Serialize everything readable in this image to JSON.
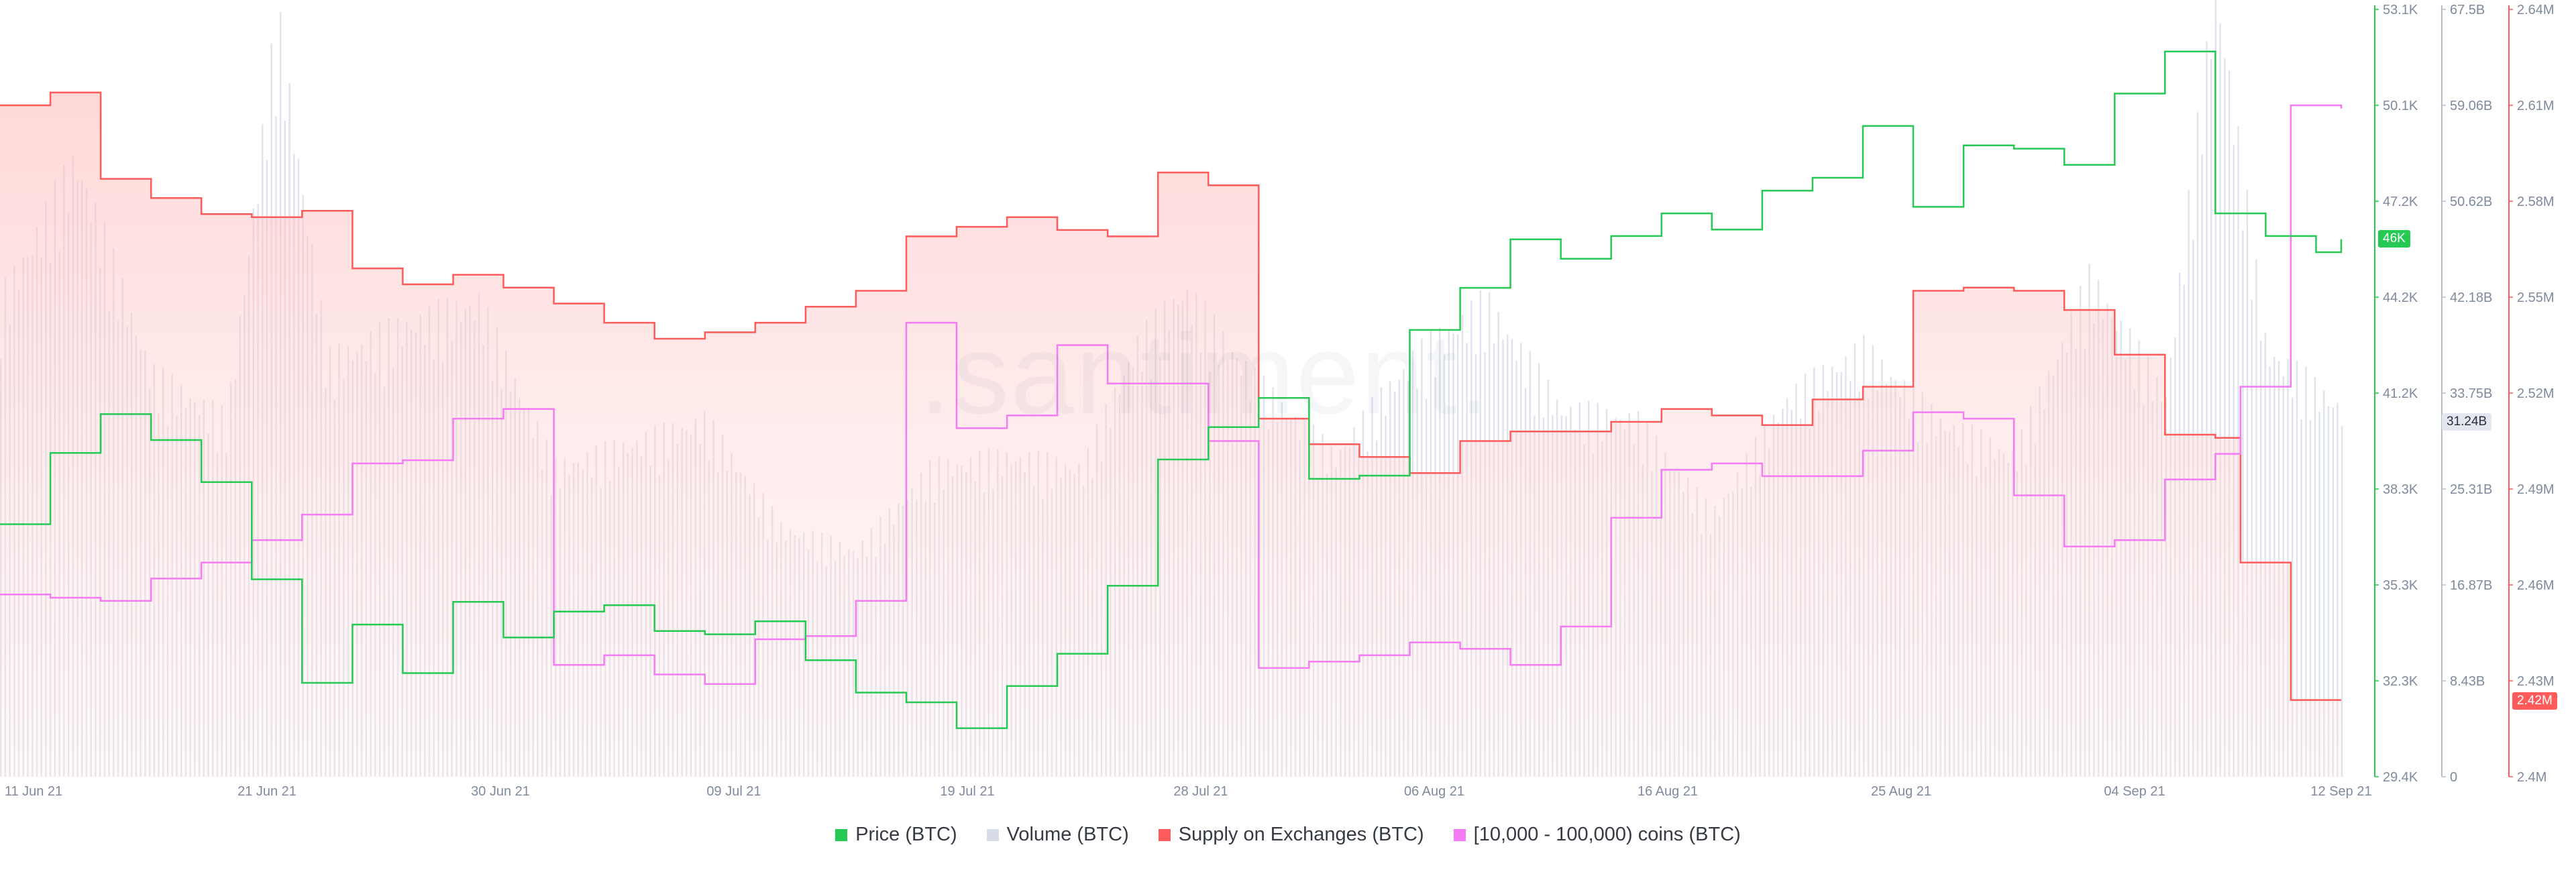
{
  "watermark": ".santiment.",
  "legend": [
    {
      "label": "Price (BTC)",
      "color": "#26c953"
    },
    {
      "label": "Volume (BTC)",
      "color": "#d8dbe8"
    },
    {
      "label": "Supply on Exchanges (BTC)",
      "color": "#ff5b5b"
    },
    {
      "label": "[10,000 - 100,000) coins (BTC)",
      "color": "#f47bf4"
    }
  ],
  "badges": {
    "price_current": "46K",
    "volume_current": "31.24B",
    "supply_current": "2.42M"
  },
  "chart_data": {
    "type": "line",
    "title": "",
    "x_labels": [
      "11 Jun 21",
      "21 Jun 21",
      "30 Jun 21",
      "09 Jul 21",
      "19 Jul 21",
      "28 Jul 21",
      "06 Aug 21",
      "16 Aug 21",
      "25 Aug 21",
      "04 Sep 21",
      "12 Sep 21"
    ],
    "date_range": [
      "2021-06-11",
      "2021-09-12"
    ],
    "grid": false,
    "axes": {
      "price": {
        "ticks": [
          "29.4K",
          "32.3K",
          "35.3K",
          "38.3K",
          "41.2K",
          "44.2K",
          "47.2K",
          "50.1K",
          "53.1K"
        ],
        "range": [
          29400,
          53100
        ],
        "color": "#26c953"
      },
      "volume": {
        "ticks": [
          "0",
          "8.43B",
          "16.87B",
          "25.31B",
          "33.75B",
          "42.18B",
          "50.62B",
          "59.06B",
          "67.5B"
        ],
        "range": [
          0,
          67.5
        ],
        "unit": "B",
        "color": "#b9bdcc"
      },
      "supply": {
        "ticks": [
          "2.4M",
          "2.43M",
          "2.46M",
          "2.49M",
          "2.52M",
          "2.55M",
          "2.58M",
          "2.61M",
          "2.64M"
        ],
        "range": [
          2.4,
          2.64
        ],
        "unit": "M",
        "color": "#ff5b5b"
      }
    },
    "series": [
      {
        "name": "Price (BTC)",
        "axis": "price",
        "color": "#26c953",
        "x": [
          "2021-06-11",
          "2021-06-13",
          "2021-06-15",
          "2021-06-17",
          "2021-06-19",
          "2021-06-21",
          "2021-06-23",
          "2021-06-25",
          "2021-06-27",
          "2021-06-29",
          "2021-07-01",
          "2021-07-03",
          "2021-07-05",
          "2021-07-07",
          "2021-07-09",
          "2021-07-11",
          "2021-07-13",
          "2021-07-15",
          "2021-07-17",
          "2021-07-19",
          "2021-07-21",
          "2021-07-23",
          "2021-07-25",
          "2021-07-27",
          "2021-07-29",
          "2021-07-31",
          "2021-08-02",
          "2021-08-04",
          "2021-08-06",
          "2021-08-08",
          "2021-08-10",
          "2021-08-12",
          "2021-08-14",
          "2021-08-16",
          "2021-08-18",
          "2021-08-20",
          "2021-08-22",
          "2021-08-24",
          "2021-08-26",
          "2021-08-28",
          "2021-08-30",
          "2021-09-01",
          "2021-09-03",
          "2021-09-05",
          "2021-09-07",
          "2021-09-09",
          "2021-09-11",
          "2021-09-12"
        ],
        "y": [
          37200,
          39400,
          40600,
          39800,
          38500,
          35500,
          32300,
          34100,
          32600,
          34800,
          33700,
          34500,
          34700,
          33900,
          33800,
          34200,
          33000,
          32000,
          31700,
          30900,
          32200,
          33200,
          35300,
          39200,
          40200,
          41100,
          38600,
          38700,
          43200,
          44500,
          46000,
          45400,
          46100,
          46800,
          46300,
          47500,
          47900,
          49500,
          47000,
          48900,
          48800,
          48300,
          50500,
          51800,
          46800,
          46100,
          45600,
          46000
        ]
      },
      {
        "name": "Volume (BTC)",
        "axis": "volume",
        "color": "#d8dbe8",
        "unit": "B",
        "x": [
          "2021-06-11",
          "2021-06-14",
          "2021-06-17",
          "2021-06-20",
          "2021-06-22",
          "2021-06-24",
          "2021-06-27",
          "2021-06-30",
          "2021-07-03",
          "2021-07-06",
          "2021-07-09",
          "2021-07-12",
          "2021-07-15",
          "2021-07-18",
          "2021-07-21",
          "2021-07-24",
          "2021-07-26",
          "2021-07-28",
          "2021-07-31",
          "2021-08-03",
          "2021-08-06",
          "2021-08-09",
          "2021-08-12",
          "2021-08-15",
          "2021-08-18",
          "2021-08-21",
          "2021-08-24",
          "2021-08-27",
          "2021-08-30",
          "2021-09-02",
          "2021-09-05",
          "2021-09-07",
          "2021-09-09",
          "2021-09-12"
        ],
        "y": [
          40,
          52,
          34,
          30,
          64,
          35,
          38,
          40,
          26,
          28,
          30,
          21,
          19,
          26,
          27,
          26,
          36,
          41,
          33,
          27,
          35,
          40,
          31,
          30,
          22,
          32,
          36,
          30,
          27,
          42,
          32,
          67,
          36,
          31
        ]
      },
      {
        "name": "Supply on Exchanges (BTC)",
        "axis": "supply",
        "color": "#ff5b5b",
        "unit": "M",
        "x": [
          "2021-06-11",
          "2021-06-13",
          "2021-06-15",
          "2021-06-17",
          "2021-06-19",
          "2021-06-21",
          "2021-06-23",
          "2021-06-25",
          "2021-06-27",
          "2021-06-29",
          "2021-07-01",
          "2021-07-03",
          "2021-07-05",
          "2021-07-07",
          "2021-07-09",
          "2021-07-11",
          "2021-07-13",
          "2021-07-15",
          "2021-07-17",
          "2021-07-19",
          "2021-07-21",
          "2021-07-23",
          "2021-07-25",
          "2021-07-27",
          "2021-07-29",
          "2021-07-31",
          "2021-08-02",
          "2021-08-04",
          "2021-08-06",
          "2021-08-08",
          "2021-08-10",
          "2021-08-12",
          "2021-08-14",
          "2021-08-16",
          "2021-08-18",
          "2021-08-20",
          "2021-08-22",
          "2021-08-24",
          "2021-08-26",
          "2021-08-28",
          "2021-08-30",
          "2021-09-01",
          "2021-09-03",
          "2021-09-05",
          "2021-09-07",
          "2021-09-08",
          "2021-09-10",
          "2021-09-12"
        ],
        "y": [
          2.61,
          2.614,
          2.587,
          2.581,
          2.576,
          2.575,
          2.577,
          2.559,
          2.554,
          2.557,
          2.553,
          2.548,
          2.542,
          2.537,
          2.539,
          2.542,
          2.547,
          2.552,
          2.569,
          2.572,
          2.575,
          2.571,
          2.569,
          2.589,
          2.585,
          2.512,
          2.504,
          2.5,
          2.495,
          2.505,
          2.508,
          2.508,
          2.511,
          2.515,
          2.513,
          2.51,
          2.518,
          2.522,
          2.552,
          2.553,
          2.552,
          2.546,
          2.532,
          2.507,
          2.506,
          2.467,
          2.424,
          2.424
        ]
      },
      {
        "name": "[10,000 - 100,000) coins (BTC)",
        "axis": "supply",
        "color": "#f47bf4",
        "unit": "M",
        "x": [
          "2021-06-11",
          "2021-06-13",
          "2021-06-15",
          "2021-06-17",
          "2021-06-19",
          "2021-06-21",
          "2021-06-23",
          "2021-06-25",
          "2021-06-27",
          "2021-06-29",
          "2021-07-01",
          "2021-07-03",
          "2021-07-05",
          "2021-07-07",
          "2021-07-09",
          "2021-07-11",
          "2021-07-13",
          "2021-07-15",
          "2021-07-17",
          "2021-07-19",
          "2021-07-21",
          "2021-07-23",
          "2021-07-25",
          "2021-07-27",
          "2021-07-29",
          "2021-07-31",
          "2021-08-02",
          "2021-08-04",
          "2021-08-06",
          "2021-08-08",
          "2021-08-10",
          "2021-08-12",
          "2021-08-14",
          "2021-08-16",
          "2021-08-18",
          "2021-08-20",
          "2021-08-22",
          "2021-08-24",
          "2021-08-26",
          "2021-08-28",
          "2021-08-30",
          "2021-09-01",
          "2021-09-03",
          "2021-09-05",
          "2021-09-07",
          "2021-09-08",
          "2021-09-10",
          "2021-09-12"
        ],
        "y": [
          2.457,
          2.456,
          2.455,
          2.462,
          2.467,
          2.474,
          2.482,
          2.498,
          2.499,
          2.512,
          2.515,
          2.435,
          2.438,
          2.432,
          2.429,
          2.443,
          2.444,
          2.455,
          2.542,
          2.509,
          2.513,
          2.535,
          2.523,
          2.523,
          2.505,
          2.434,
          2.436,
          2.438,
          2.442,
          2.44,
          2.435,
          2.447,
          2.481,
          2.496,
          2.498,
          2.494,
          2.494,
          2.502,
          2.514,
          2.512,
          2.488,
          2.472,
          2.474,
          2.493,
          2.501,
          2.522,
          2.61,
          2.609
        ]
      }
    ]
  }
}
